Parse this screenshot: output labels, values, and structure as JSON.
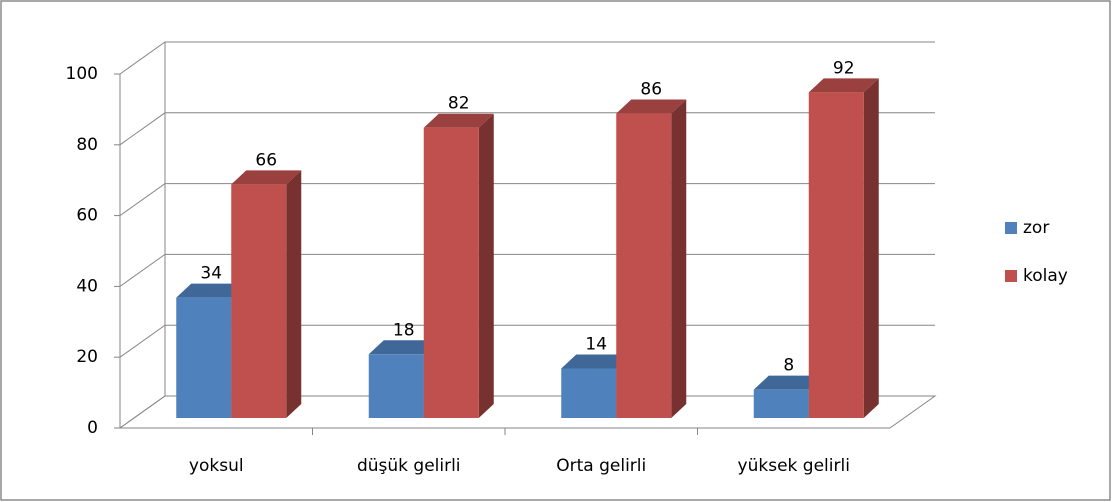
{
  "chart_data": {
    "type": "bar3d",
    "categories": [
      "yoksul",
      "düşük gelirli",
      "Orta gelirli",
      "yüksek gelirli"
    ],
    "series": [
      {
        "name": "zor",
        "color": "#4f81bd",
        "values": [
          34,
          18,
          14,
          8
        ]
      },
      {
        "name": "kolay",
        "color": "#c0504d",
        "values": [
          66,
          82,
          86,
          92
        ]
      }
    ],
    "ylim": [
      0,
      100
    ],
    "yticks": [
      0,
      20,
      40,
      60,
      80,
      100
    ],
    "grid": true,
    "legend": "right"
  }
}
